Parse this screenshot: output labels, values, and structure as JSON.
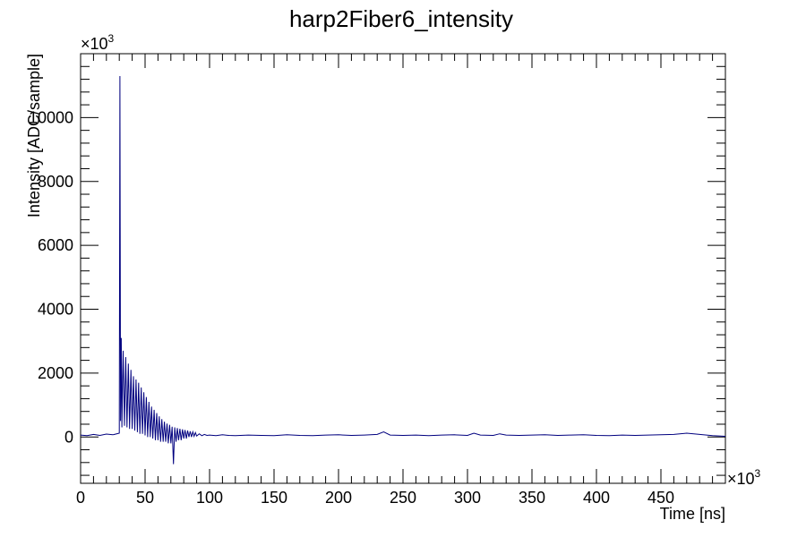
{
  "chart_data": {
    "type": "line",
    "title": "harp2Fiber6_intensity",
    "xlabel": "Time [ns]",
    "ylabel": "Intensity [ADC/sample]",
    "x_multiplier": "×10",
    "x_multiplier_exp": "3",
    "y_multiplier": "×10",
    "y_multiplier_exp": "3",
    "xlim": [
      0,
      500
    ],
    "ylim": [
      -1450,
      12000
    ],
    "x_ticks": [
      0,
      50,
      100,
      150,
      200,
      250,
      300,
      350,
      400,
      450
    ],
    "x_tick_labels": [
      "0",
      "50",
      "100",
      "150",
      "200",
      "250",
      "300",
      "350",
      "400",
      "450"
    ],
    "y_ticks": [
      0,
      2000,
      4000,
      6000,
      8000,
      10000
    ],
    "y_tick_labels": [
      "0",
      "2000",
      "4000",
      "6000",
      "8000",
      "10000"
    ],
    "line_color": "#00007f",
    "grid": false,
    "legend": "none",
    "series": [
      {
        "x": [
          0,
          5,
          10,
          15,
          20,
          25,
          30,
          30.5,
          31,
          31.5,
          32,
          33,
          34,
          35,
          36,
          37,
          38,
          39,
          40,
          41,
          42,
          43,
          44,
          45,
          46,
          47,
          48,
          49,
          50,
          51,
          52,
          53,
          54,
          55,
          56,
          57,
          58,
          59,
          60,
          61,
          62,
          63,
          64,
          65,
          66,
          67,
          68,
          69,
          70,
          71,
          72,
          73,
          74,
          75,
          76,
          77,
          78,
          79,
          80,
          81,
          82,
          83,
          84,
          85,
          86,
          87,
          88,
          89,
          90,
          92,
          94,
          96,
          98,
          100,
          105,
          110,
          115,
          120,
          130,
          140,
          150,
          160,
          170,
          180,
          190,
          200,
          210,
          220,
          230,
          235,
          240,
          250,
          260,
          270,
          280,
          290,
          300,
          305,
          310,
          320,
          325,
          330,
          340,
          350,
          360,
          370,
          380,
          390,
          400,
          410,
          420,
          430,
          440,
          450,
          460,
          470,
          480,
          490,
          500
        ],
        "y": [
          60,
          40,
          80,
          50,
          90,
          70,
          120,
          11300,
          500,
          3100,
          300,
          2700,
          350,
          2500,
          300,
          2300,
          250,
          2100,
          250,
          1900,
          200,
          1800,
          150,
          1700,
          100,
          1550,
          100,
          1400,
          50,
          1250,
          0,
          1100,
          0,
          950,
          -50,
          850,
          -100,
          750,
          -100,
          650,
          -150,
          560,
          -150,
          480,
          -150,
          420,
          -200,
          380,
          -200,
          320,
          -850,
          300,
          -150,
          280,
          -100,
          260,
          -100,
          240,
          -50,
          220,
          -50,
          200,
          0,
          180,
          0,
          160,
          20,
          140,
          30,
          100,
          40,
          80,
          50,
          60,
          40,
          70,
          50,
          40,
          60,
          50,
          40,
          70,
          50,
          40,
          60,
          70,
          50,
          60,
          80,
          160,
          60,
          50,
          60,
          40,
          60,
          70,
          50,
          120,
          60,
          50,
          100,
          60,
          50,
          60,
          70,
          50,
          60,
          70,
          50,
          40,
          60,
          50,
          60,
          70,
          80,
          120,
          80,
          40,
          20
        ]
      }
    ]
  }
}
